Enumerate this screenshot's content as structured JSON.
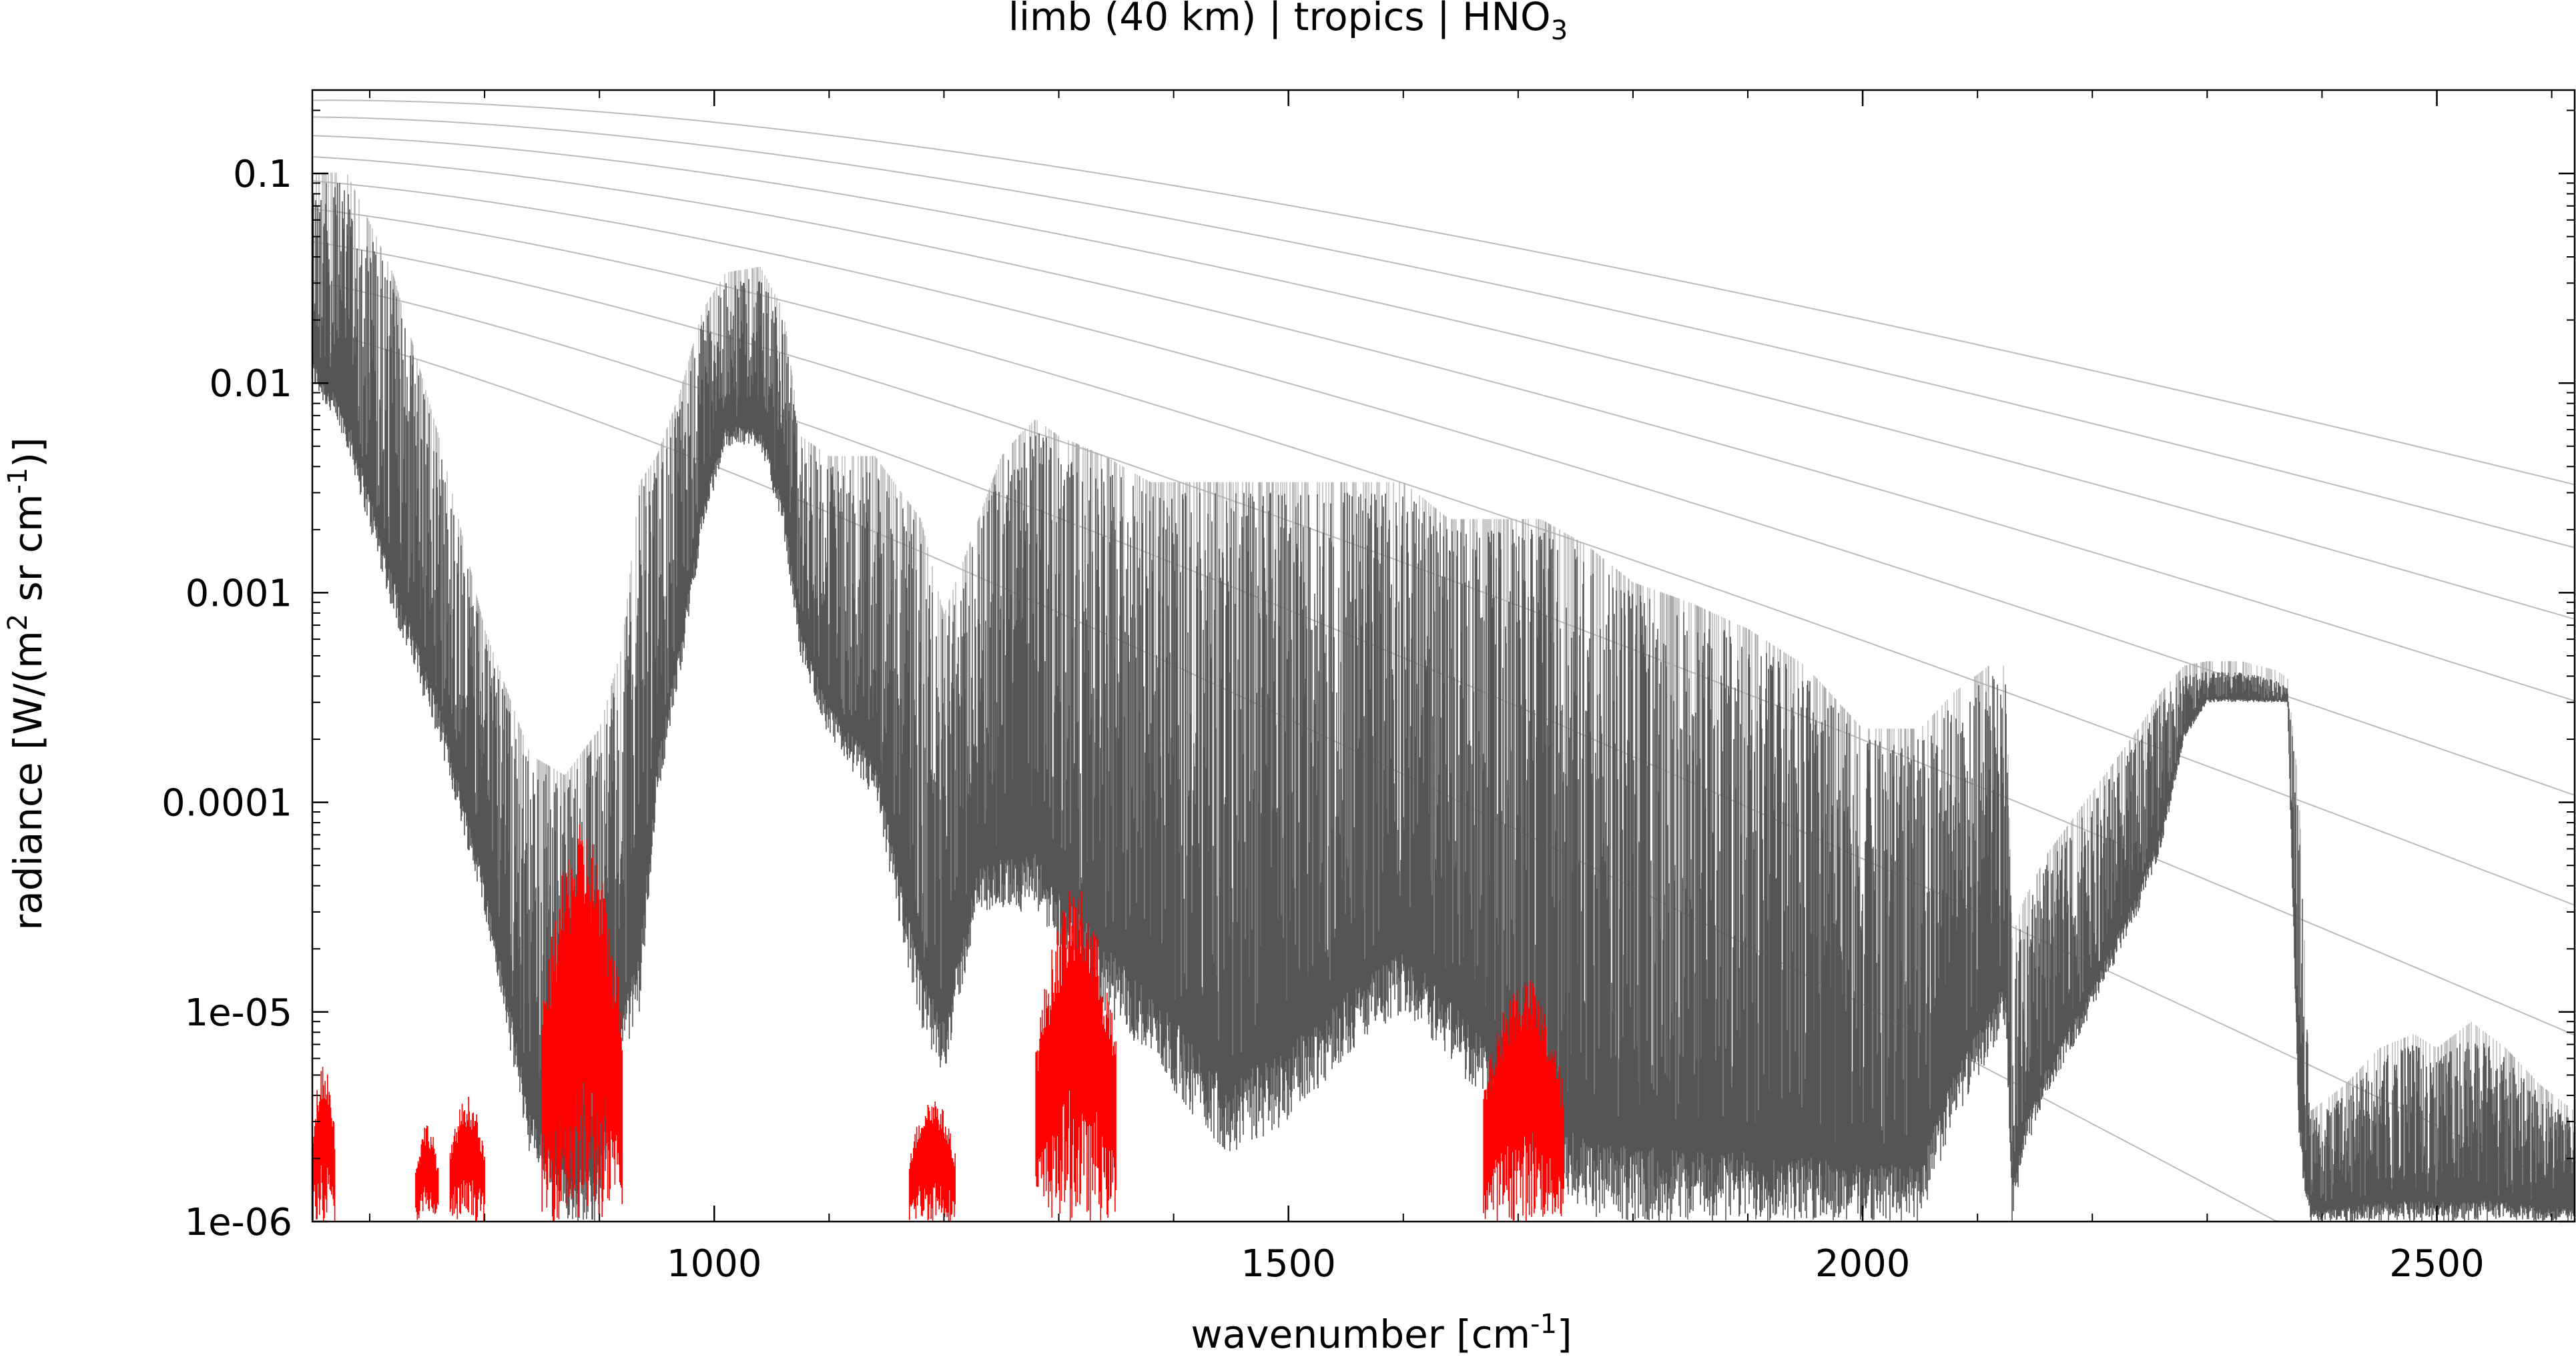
{
  "chart_data": {
    "type": "line",
    "title": "limb (40 km) | tropics | HNO",
    "title_subscript": "3",
    "xlabel": "wavenumber [cm",
    "xlabel_sup": "-1",
    "xlabel_end": "]",
    "ylabel_parts": [
      "radiance [W/(m",
      "2",
      " sr cm",
      "-1",
      ")]"
    ],
    "xlim": [
      650,
      2620
    ],
    "ylim": [
      1e-06,
      0.25
    ],
    "yscale": "log",
    "grid": false,
    "x_ticks": [
      {
        "value": 1000,
        "label": "1000"
      },
      {
        "value": 1500,
        "label": "1500"
      },
      {
        "value": 2000,
        "label": "2000"
      },
      {
        "value": 2500,
        "label": "2500"
      }
    ],
    "y_ticks": [
      {
        "value": 0.1,
        "label": "0.1"
      },
      {
        "value": 0.01,
        "label": "0.01"
      },
      {
        "value": 0.001,
        "label": "0.001"
      },
      {
        "value": 0.0001,
        "label": "0.0001"
      },
      {
        "value": 1e-05,
        "label": "1e-05"
      },
      {
        "value": 1e-06,
        "label": "1e-06"
      }
    ],
    "colors": {
      "total": "#555555",
      "total_light": "#aaaaaa",
      "gas": "#ff0000",
      "planck": "#bbbbbb"
    },
    "planck_temperatures": [
      180,
      200,
      220,
      240,
      260,
      280,
      300,
      320,
      340
    ],
    "series": [
      {
        "role": "total",
        "envelope_x": [
          650,
          680,
          720,
          760,
          800,
          840,
          870,
          900,
          920,
          935,
          950,
          970,
          990,
          1010,
          1040,
          1060,
          1075,
          1100,
          1140,
          1180,
          1200,
          1230,
          1250,
          1265,
          1280,
          1300,
          1340,
          1380,
          1420,
          1450,
          1500,
          1550,
          1600,
          1640,
          1680,
          1720,
          1760,
          1800,
          1850,
          1900,
          1950,
          2000,
          2050,
          2080,
          2110,
          2120,
          2125,
          2130,
          2140,
          2160,
          2200,
          2240,
          2260,
          2280,
          2300,
          2330,
          2360,
          2370,
          2380,
          2390,
          2420,
          2450,
          2480,
          2500,
          2530,
          2560,
          2590,
          2620
        ],
        "envelope_hi": [
          0.09,
          0.09,
          0.03,
          0.005,
          0.0006,
          0.00015,
          0.00012,
          0.0002,
          0.0005,
          0.003,
          0.004,
          0.008,
          0.02,
          0.03,
          0.032,
          0.02,
          0.005,
          0.004,
          0.004,
          0.002,
          0.0007,
          0.002,
          0.004,
          0.005,
          0.006,
          0.005,
          0.004,
          0.003,
          0.003,
          0.003,
          0.003,
          0.003,
          0.003,
          0.002,
          0.002,
          0.002,
          0.0015,
          0.001,
          0.0008,
          0.0006,
          0.0004,
          0.0002,
          0.0002,
          0.0003,
          0.0004,
          0.0004,
          0.0004,
          2e-05,
          3e-05,
          5e-05,
          0.0001,
          0.0002,
          0.0003,
          0.0004,
          0.00042,
          0.00042,
          0.00038,
          0.00035,
          0.0001,
          3e-06,
          4e-06,
          6e-06,
          7e-06,
          6e-06,
          8e-06,
          6e-06,
          4e-06,
          3e-06
        ],
        "envelope_lo": [
          0.01,
          0.005,
          0.0008,
          0.0002,
          3e-05,
          2e-06,
          1e-06,
          1e-06,
          6e-06,
          1e-05,
          0.0001,
          0.0004,
          0.002,
          0.005,
          0.005,
          0.002,
          0.0005,
          0.0002,
          0.0001,
          8e-06,
          5e-06,
          3e-05,
          3e-05,
          3e-05,
          3e-05,
          2e-05,
          1e-05,
          6e-06,
          3e-06,
          2e-06,
          3e-06,
          6e-06,
          1e-05,
          6e-06,
          3e-06,
          2e-06,
          1e-06,
          1e-06,
          1e-06,
          1e-06,
          1e-06,
          1e-06,
          1e-06,
          3e-06,
          6e-06,
          8e-06,
          8e-06,
          1e-06,
          2e-06,
          4e-06,
          1e-05,
          3e-05,
          6e-05,
          0.0002,
          0.0003,
          0.0003,
          0.0003,
          0.0003,
          2e-06,
          1e-06,
          1e-06,
          1e-06,
          1e-06,
          1e-06,
          1e-06,
          1e-06,
          1e-06,
          1e-06
        ]
      },
      {
        "role": "gas",
        "bands": [
          {
            "x0": 650,
            "x1": 670,
            "hi": 6e-06
          },
          {
            "x0": 740,
            "x1": 760,
            "hi": 3e-06
          },
          {
            "x0": 770,
            "x1": 800,
            "hi": 4e-06
          },
          {
            "x0": 850,
            "x1": 920,
            "hi": 8e-05
          },
          {
            "x0": 1170,
            "x1": 1210,
            "hi": 4e-06
          },
          {
            "x0": 1280,
            "x1": 1350,
            "hi": 4e-05
          },
          {
            "x0": 1670,
            "x1": 1740,
            "hi": 1.5e-05
          }
        ]
      }
    ]
  }
}
